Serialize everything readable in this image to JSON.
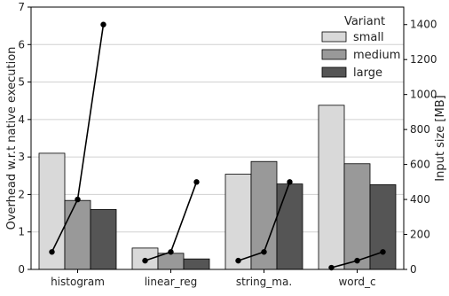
{
  "chart_data": {
    "type": "bar",
    "categories": [
      "histogram",
      "linear_reg",
      "string_ma.",
      "word_c"
    ],
    "series": [
      {
        "name": "small",
        "color": "#d9d9d9",
        "values": [
          3.1,
          0.57,
          2.54,
          4.38
        ]
      },
      {
        "name": "medium",
        "color": "#999999",
        "values": [
          1.84,
          0.43,
          2.88,
          2.82
        ]
      },
      {
        "name": "large",
        "color": "#555555",
        "values": [
          1.6,
          0.28,
          2.28,
          2.26
        ]
      }
    ],
    "lines": [
      {
        "category": "histogram",
        "values_mb": [
          100,
          400,
          1400
        ]
      },
      {
        "category": "linear_reg",
        "values_mb": [
          50,
          100,
          500
        ]
      },
      {
        "category": "string_ma.",
        "values_mb": [
          50,
          100,
          500
        ]
      },
      {
        "category": "word_c",
        "values_mb": [
          10,
          50,
          100
        ]
      }
    ],
    "ylabel": "Overhead w.r.t native execution",
    "y2label": "Input size [MB]",
    "ylim": [
      0,
      7
    ],
    "y2lim": [
      0,
      1500
    ],
    "yticks": [
      "0",
      "1",
      "2",
      "3",
      "4",
      "5",
      "6",
      "7"
    ],
    "y2ticks": [
      "0",
      "200",
      "400",
      "600",
      "800",
      "1000",
      "1200",
      "1400"
    ],
    "grid": true,
    "legend": {
      "title": "Variant",
      "placement": "top-right"
    }
  }
}
